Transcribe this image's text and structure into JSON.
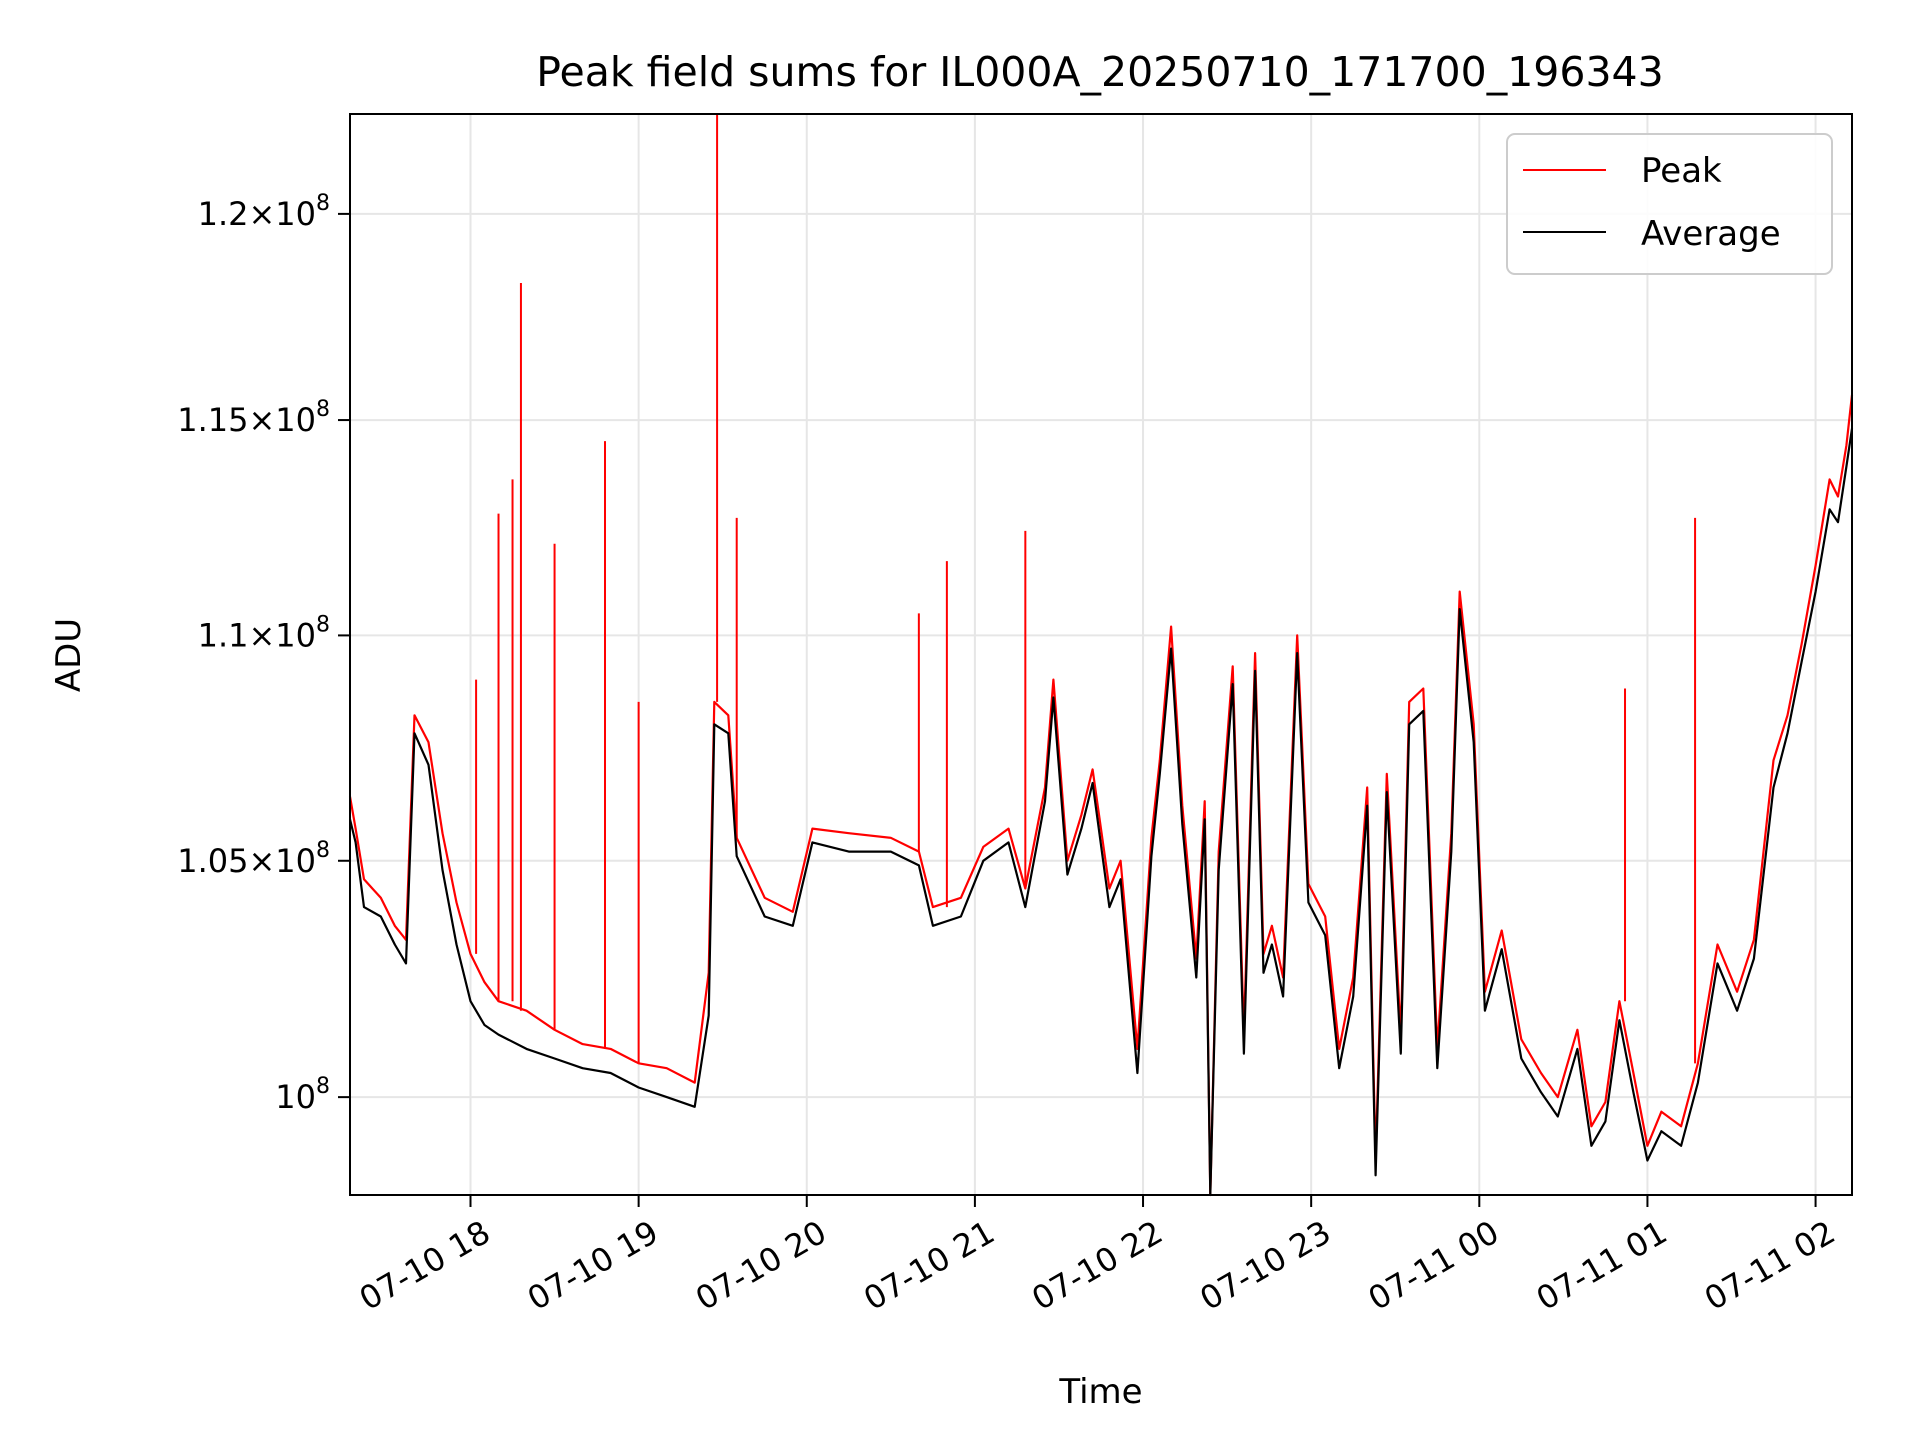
{
  "chart_data": {
    "type": "line",
    "title": "Peak field sums for IL000A_20250710_171700_196343",
    "xlabel": "Time",
    "ylabel": "ADU",
    "xlim": [
      "2025-07-10 17:17",
      "2025-07-11 02:13"
    ],
    "ylim": [
      98000000,
      122500000
    ],
    "yscale": "log",
    "grid": true,
    "legend": "top-right",
    "x_ticks": [
      {
        "label": "07-10 18",
        "time": "2025-07-10 18:00"
      },
      {
        "label": "07-10 19",
        "time": "2025-07-10 19:00"
      },
      {
        "label": "07-10 20",
        "time": "2025-07-10 20:00"
      },
      {
        "label": "07-10 21",
        "time": "2025-07-10 21:00"
      },
      {
        "label": "07-10 22",
        "time": "2025-07-10 22:00"
      },
      {
        "label": "07-10 23",
        "time": "2025-07-10 23:00"
      },
      {
        "label": "07-11 00",
        "time": "2025-07-11 00:00"
      },
      {
        "label": "07-11 01",
        "time": "2025-07-11 01:00"
      },
      {
        "label": "07-11 02",
        "time": "2025-07-11 02:00"
      }
    ],
    "y_ticks": [
      {
        "mant": "1.2",
        "exp": "8",
        "value": 120000000
      },
      {
        "mant": "1.15",
        "exp": "8",
        "value": 115000000
      },
      {
        "mant": "1.1",
        "exp": "8",
        "value": 110000000
      },
      {
        "mant": "1.05",
        "exp": "8",
        "value": 105000000
      },
      {
        "mant": "",
        "exp": "8",
        "value": 100000000
      }
    ],
    "series": [
      {
        "name": "Peak",
        "color": "#ff0000",
        "points": [
          [
            "2025-07-10 17:17",
            106400000
          ],
          [
            "2025-07-10 17:19",
            105700000
          ],
          [
            "2025-07-10 17:22",
            104600000
          ],
          [
            "2025-07-10 17:28",
            104200000
          ],
          [
            "2025-07-10 17:33",
            103600000
          ],
          [
            "2025-07-10 17:37",
            103300000
          ],
          [
            "2025-07-10 17:40",
            108200000
          ],
          [
            "2025-07-10 17:45",
            107600000
          ],
          [
            "2025-07-10 17:50",
            105600000
          ],
          [
            "2025-07-10 17:55",
            104100000
          ],
          [
            "2025-07-10 18:00",
            103000000
          ],
          [
            "2025-07-10 18:05",
            102400000
          ],
          [
            "2025-07-10 18:10",
            102000000
          ],
          [
            "2025-07-10 18:20",
            101800000
          ],
          [
            "2025-07-10 18:30",
            101400000
          ],
          [
            "2025-07-10 18:40",
            101100000
          ],
          [
            "2025-07-10 18:50",
            101000000
          ],
          [
            "2025-07-10 19:00",
            100700000
          ],
          [
            "2025-07-10 19:10",
            100600000
          ],
          [
            "2025-07-10 19:20",
            100300000
          ],
          [
            "2025-07-10 19:25",
            102600000
          ],
          [
            "2025-07-10 19:27",
            108500000
          ],
          [
            "2025-07-10 19:32",
            108200000
          ],
          [
            "2025-07-10 19:35",
            105500000
          ],
          [
            "2025-07-10 19:45",
            104200000
          ],
          [
            "2025-07-10 19:55",
            103900000
          ],
          [
            "2025-07-10 20:02",
            105700000
          ],
          [
            "2025-07-10 20:15",
            105600000
          ],
          [
            "2025-07-10 20:30",
            105500000
          ],
          [
            "2025-07-10 20:40",
            105200000
          ],
          [
            "2025-07-10 20:45",
            104000000
          ],
          [
            "2025-07-10 20:55",
            104200000
          ],
          [
            "2025-07-10 21:03",
            105300000
          ],
          [
            "2025-07-10 21:12",
            105700000
          ],
          [
            "2025-07-10 21:18",
            104400000
          ],
          [
            "2025-07-10 21:25",
            106600000
          ],
          [
            "2025-07-10 21:28",
            109000000
          ],
          [
            "2025-07-10 21:33",
            105000000
          ],
          [
            "2025-07-10 21:38",
            106000000
          ],
          [
            "2025-07-10 21:42",
            107000000
          ],
          [
            "2025-07-10 21:48",
            104400000
          ],
          [
            "2025-07-10 21:52",
            105000000
          ],
          [
            "2025-07-10 21:58",
            101000000
          ],
          [
            "2025-07-10 22:03",
            105500000
          ],
          [
            "2025-07-10 22:06",
            107200000
          ],
          [
            "2025-07-10 22:10",
            110200000
          ],
          [
            "2025-07-10 22:14",
            106200000
          ],
          [
            "2025-07-10 22:19",
            102900000
          ],
          [
            "2025-07-10 22:22",
            106300000
          ],
          [
            "2025-07-10 22:24",
            98000000
          ],
          [
            "2025-07-10 22:27",
            105200000
          ],
          [
            "2025-07-10 22:32",
            109300000
          ],
          [
            "2025-07-10 22:36",
            101300000
          ],
          [
            "2025-07-10 22:40",
            109600000
          ],
          [
            "2025-07-10 22:43",
            103000000
          ],
          [
            "2025-07-10 22:46",
            103600000
          ],
          [
            "2025-07-10 22:50",
            102500000
          ],
          [
            "2025-07-10 22:55",
            110000000
          ],
          [
            "2025-07-10 22:59",
            104500000
          ],
          [
            "2025-07-10 23:05",
            103800000
          ],
          [
            "2025-07-10 23:10",
            101000000
          ],
          [
            "2025-07-10 23:15",
            102500000
          ],
          [
            "2025-07-10 23:20",
            106600000
          ],
          [
            "2025-07-10 23:23",
            98700000
          ],
          [
            "2025-07-10 23:27",
            106900000
          ],
          [
            "2025-07-10 23:32",
            101300000
          ],
          [
            "2025-07-10 23:35",
            108500000
          ],
          [
            "2025-07-10 23:40",
            108800000
          ],
          [
            "2025-07-10 23:45",
            101000000
          ],
          [
            "2025-07-10 23:50",
            105600000
          ],
          [
            "2025-07-10 23:53",
            111000000
          ],
          [
            "2025-07-10 23:58",
            108000000
          ],
          [
            "2025-07-11 00:02",
            102200000
          ],
          [
            "2025-07-11 00:08",
            103500000
          ],
          [
            "2025-07-11 00:15",
            101200000
          ],
          [
            "2025-07-11 00:22",
            100500000
          ],
          [
            "2025-07-11 00:28",
            100000000
          ],
          [
            "2025-07-11 00:35",
            101400000
          ],
          [
            "2025-07-11 00:40",
            99400000
          ],
          [
            "2025-07-11 00:45",
            99900000
          ],
          [
            "2025-07-11 00:50",
            102000000
          ],
          [
            "2025-07-11 00:55",
            100500000
          ],
          [
            "2025-07-11 01:00",
            99000000
          ],
          [
            "2025-07-11 01:05",
            99700000
          ],
          [
            "2025-07-11 01:12",
            99400000
          ],
          [
            "2025-07-11 01:18",
            100700000
          ],
          [
            "2025-07-11 01:25",
            103200000
          ],
          [
            "2025-07-11 01:32",
            102200000
          ],
          [
            "2025-07-11 01:38",
            103300000
          ],
          [
            "2025-07-11 01:45",
            107200000
          ],
          [
            "2025-07-11 01:50",
            108200000
          ],
          [
            "2025-07-11 01:55",
            109800000
          ],
          [
            "2025-07-11 02:00",
            111600000
          ],
          [
            "2025-07-11 02:05",
            113600000
          ],
          [
            "2025-07-11 02:08",
            113200000
          ],
          [
            "2025-07-11 02:11",
            114400000
          ],
          [
            "2025-07-11 02:13",
            115600000
          ]
        ],
        "spikes": [
          [
            "2025-07-10 18:02",
            109000000
          ],
          [
            "2025-07-10 18:10",
            112800000
          ],
          [
            "2025-07-10 18:15",
            113600000
          ],
          [
            "2025-07-10 18:18",
            118300000
          ],
          [
            "2025-07-10 18:30",
            112100000
          ],
          [
            "2025-07-10 18:48",
            114500000
          ],
          [
            "2025-07-10 19:00",
            108500000
          ],
          [
            "2025-07-10 19:28",
            122500000
          ],
          [
            "2025-07-10 19:35",
            112700000
          ],
          [
            "2025-07-10 20:40",
            110500000
          ],
          [
            "2025-07-10 20:50",
            111700000
          ],
          [
            "2025-07-10 21:18",
            112400000
          ],
          [
            "2025-07-11 00:52",
            108800000
          ],
          [
            "2025-07-11 01:17",
            112700000
          ]
        ]
      },
      {
        "name": "Average",
        "color": "#000000",
        "points": [
          [
            "2025-07-10 17:17",
            105900000
          ],
          [
            "2025-07-10 17:19",
            105400000
          ],
          [
            "2025-07-10 17:22",
            104000000
          ],
          [
            "2025-07-10 17:28",
            103800000
          ],
          [
            "2025-07-10 17:33",
            103200000
          ],
          [
            "2025-07-10 17:37",
            102800000
          ],
          [
            "2025-07-10 17:40",
            107800000
          ],
          [
            "2025-07-10 17:45",
            107100000
          ],
          [
            "2025-07-10 17:50",
            104800000
          ],
          [
            "2025-07-10 17:55",
            103200000
          ],
          [
            "2025-07-10 18:00",
            102000000
          ],
          [
            "2025-07-10 18:05",
            101500000
          ],
          [
            "2025-07-10 18:10",
            101300000
          ],
          [
            "2025-07-10 18:20",
            101000000
          ],
          [
            "2025-07-10 18:30",
            100800000
          ],
          [
            "2025-07-10 18:40",
            100600000
          ],
          [
            "2025-07-10 18:50",
            100500000
          ],
          [
            "2025-07-10 19:00",
            100200000
          ],
          [
            "2025-07-10 19:10",
            100000000
          ],
          [
            "2025-07-10 19:20",
            99800000
          ],
          [
            "2025-07-10 19:25",
            101700000
          ],
          [
            "2025-07-10 19:27",
            108000000
          ],
          [
            "2025-07-10 19:32",
            107800000
          ],
          [
            "2025-07-10 19:35",
            105100000
          ],
          [
            "2025-07-10 19:45",
            103800000
          ],
          [
            "2025-07-10 19:55",
            103600000
          ],
          [
            "2025-07-10 20:02",
            105400000
          ],
          [
            "2025-07-10 20:15",
            105200000
          ],
          [
            "2025-07-10 20:30",
            105200000
          ],
          [
            "2025-07-10 20:40",
            104900000
          ],
          [
            "2025-07-10 20:45",
            103600000
          ],
          [
            "2025-07-10 20:55",
            103800000
          ],
          [
            "2025-07-10 21:03",
            105000000
          ],
          [
            "2025-07-10 21:12",
            105400000
          ],
          [
            "2025-07-10 21:18",
            104000000
          ],
          [
            "2025-07-10 21:25",
            106300000
          ],
          [
            "2025-07-10 21:28",
            108600000
          ],
          [
            "2025-07-10 21:33",
            104700000
          ],
          [
            "2025-07-10 21:38",
            105700000
          ],
          [
            "2025-07-10 21:42",
            106700000
          ],
          [
            "2025-07-10 21:48",
            104000000
          ],
          [
            "2025-07-10 21:52",
            104600000
          ],
          [
            "2025-07-10 21:58",
            100500000
          ],
          [
            "2025-07-10 22:03",
            105100000
          ],
          [
            "2025-07-10 22:06",
            106900000
          ],
          [
            "2025-07-10 22:10",
            109700000
          ],
          [
            "2025-07-10 22:14",
            105800000
          ],
          [
            "2025-07-10 22:19",
            102500000
          ],
          [
            "2025-07-10 22:22",
            105900000
          ],
          [
            "2025-07-10 22:24",
            98000000
          ],
          [
            "2025-07-10 22:27",
            104800000
          ],
          [
            "2025-07-10 22:32",
            108900000
          ],
          [
            "2025-07-10 22:36",
            100900000
          ],
          [
            "2025-07-10 22:40",
            109200000
          ],
          [
            "2025-07-10 22:43",
            102600000
          ],
          [
            "2025-07-10 22:46",
            103200000
          ],
          [
            "2025-07-10 22:50",
            102100000
          ],
          [
            "2025-07-10 22:55",
            109600000
          ],
          [
            "2025-07-10 22:59",
            104100000
          ],
          [
            "2025-07-10 23:05",
            103400000
          ],
          [
            "2025-07-10 23:10",
            100600000
          ],
          [
            "2025-07-10 23:15",
            102100000
          ],
          [
            "2025-07-10 23:20",
            106200000
          ],
          [
            "2025-07-10 23:23",
            98400000
          ],
          [
            "2025-07-10 23:27",
            106500000
          ],
          [
            "2025-07-10 23:32",
            100900000
          ],
          [
            "2025-07-10 23:35",
            108000000
          ],
          [
            "2025-07-10 23:40",
            108300000
          ],
          [
            "2025-07-10 23:45",
            100600000
          ],
          [
            "2025-07-10 23:50",
            105200000
          ],
          [
            "2025-07-10 23:53",
            110600000
          ],
          [
            "2025-07-10 23:58",
            107600000
          ],
          [
            "2025-07-11 00:02",
            101800000
          ],
          [
            "2025-07-11 00:08",
            103100000
          ],
          [
            "2025-07-11 00:15",
            100800000
          ],
          [
            "2025-07-11 00:22",
            100100000
          ],
          [
            "2025-07-11 00:28",
            99600000
          ],
          [
            "2025-07-11 00:35",
            101000000
          ],
          [
            "2025-07-11 00:40",
            99000000
          ],
          [
            "2025-07-11 00:45",
            99500000
          ],
          [
            "2025-07-11 00:50",
            101600000
          ],
          [
            "2025-07-11 00:55",
            100100000
          ],
          [
            "2025-07-11 01:00",
            98700000
          ],
          [
            "2025-07-11 01:05",
            99300000
          ],
          [
            "2025-07-11 01:12",
            99000000
          ],
          [
            "2025-07-11 01:18",
            100300000
          ],
          [
            "2025-07-11 01:25",
            102800000
          ],
          [
            "2025-07-11 01:32",
            101800000
          ],
          [
            "2025-07-11 01:38",
            102900000
          ],
          [
            "2025-07-11 01:45",
            106600000
          ],
          [
            "2025-07-11 01:50",
            107800000
          ],
          [
            "2025-07-11 01:55",
            109400000
          ],
          [
            "2025-07-11 02:00",
            111000000
          ],
          [
            "2025-07-11 02:05",
            112900000
          ],
          [
            "2025-07-11 02:08",
            112600000
          ],
          [
            "2025-07-11 02:11",
            113900000
          ],
          [
            "2025-07-11 02:13",
            114800000
          ]
        ]
      }
    ]
  }
}
